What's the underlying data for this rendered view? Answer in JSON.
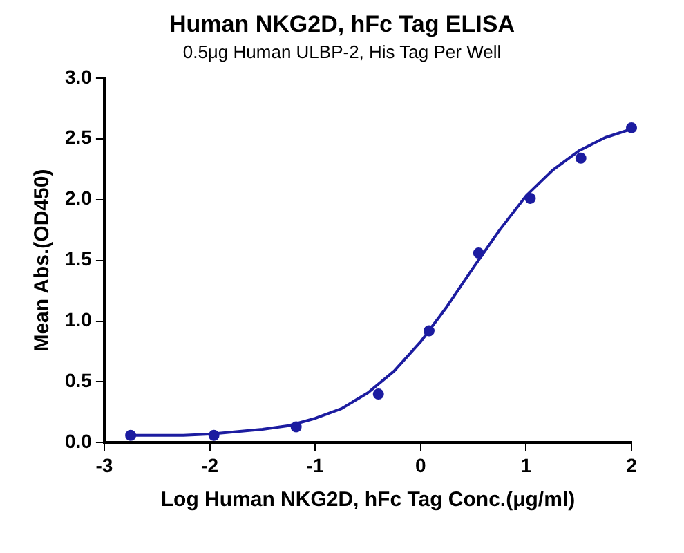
{
  "chart_data": {
    "type": "scatter",
    "title": "Human NKG2D, hFc Tag ELISA",
    "subtitle": "0.5μg Human ULBP-2, His Tag Per Well",
    "xlabel": "Log Human NKG2D, hFc Tag Conc.(μg/ml)",
    "ylabel": "Mean Abs.(OD450)",
    "xlim": [
      -3,
      2
    ],
    "xticks": [
      -3,
      -2,
      -1,
      0,
      1,
      2
    ],
    "ylim": [
      0,
      3
    ],
    "yticks": [
      {
        "value": 0,
        "label": "0.0"
      },
      0.5,
      {
        "value": 1,
        "label": "1.0"
      },
      1.5,
      {
        "value": 2,
        "label": "2.0"
      },
      2.5,
      {
        "value": 3,
        "label": "3.0"
      }
    ],
    "grid": false,
    "legend": false,
    "series": [
      {
        "color": "#1c1ca0",
        "marker": "circle",
        "x": [
          -2.75,
          -1.96,
          -1.18,
          -0.4,
          0.08,
          0.55,
          1.04,
          1.52,
          2.0
        ],
        "values": [
          0.06,
          0.06,
          0.13,
          0.4,
          0.92,
          1.56,
          2.01,
          2.34,
          2.59
        ]
      },
      {
        "type": "line",
        "marker": "none",
        "color": "#1c1ca0",
        "x": [
          -2.75,
          -2.5,
          -2.25,
          -2,
          -1.75,
          -1.5,
          -1.25,
          -1,
          -0.75,
          -0.5,
          -0.25,
          0,
          0.25,
          0.5,
          0.75,
          1,
          1.25,
          1.5,
          1.75,
          2
        ],
        "values": [
          0.06,
          0.06,
          0.06,
          0.07,
          0.09,
          0.11,
          0.14,
          0.2,
          0.28,
          0.41,
          0.59,
          0.83,
          1.12,
          1.44,
          1.75,
          2.03,
          2.24,
          2.4,
          2.51,
          2.58
        ]
      }
    ]
  }
}
